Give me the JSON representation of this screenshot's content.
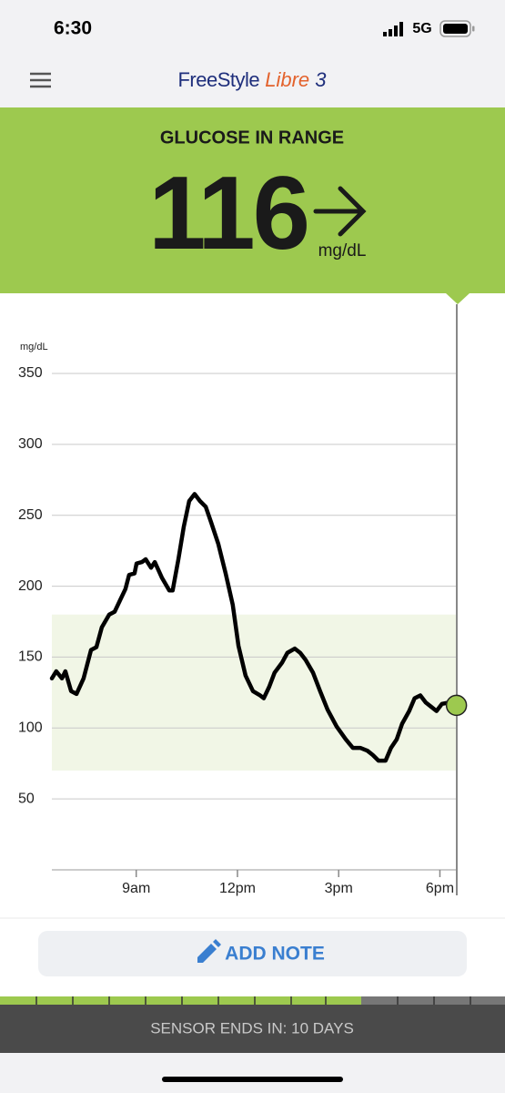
{
  "status_bar": {
    "time": "6:30",
    "network": "5G"
  },
  "header": {
    "brand": "FreeStyle",
    "product": "Libre",
    "version": "3"
  },
  "reading": {
    "status": "GLUCOSE IN RANGE",
    "value": 116,
    "unit": "mg/dL"
  },
  "chart_data": {
    "type": "line",
    "ylabel": "mg/dL",
    "x": [
      6.5,
      6.63,
      6.8,
      6.9,
      7.07,
      7.23,
      7.44,
      7.66,
      7.82,
      7.98,
      8.2,
      8.36,
      8.52,
      8.68,
      8.79,
      8.95,
      9.01,
      9.17,
      9.28,
      9.44,
      9.55,
      9.76,
      9.98,
      10.08,
      10.25,
      10.41,
      10.57,
      10.73,
      10.89,
      11.06,
      11.22,
      11.43,
      11.65,
      11.86,
      12.03,
      12.24,
      12.46,
      12.67,
      12.78,
      12.94,
      13.1,
      13.32,
      13.48,
      13.7,
      13.86,
      14.02,
      14.24,
      14.45,
      14.67,
      14.94,
      15.21,
      15.42,
      15.64,
      15.85,
      16.01,
      16.18,
      16.39,
      16.55,
      16.72,
      16.88,
      17.09,
      17.25,
      17.42,
      17.58,
      17.74,
      17.9,
      18.06,
      18.28,
      18.49
    ],
    "series": [
      {
        "color": "#000000",
        "values": [
          135,
          140,
          135,
          140,
          126,
          124,
          135,
          155,
          157,
          171,
          180,
          182,
          190,
          198,
          208,
          209,
          216,
          217,
          219,
          213,
          217,
          206,
          197,
          197,
          219,
          242,
          260,
          265,
          260,
          256,
          245,
          230,
          209,
          187,
          158,
          137,
          126,
          123,
          121,
          129,
          139,
          146,
          153,
          156,
          153,
          148,
          139,
          126,
          113,
          101,
          92,
          86,
          86,
          84,
          81,
          77,
          77,
          86,
          92,
          103,
          112,
          121,
          123,
          118,
          115,
          112,
          117,
          118,
          116
        ]
      }
    ],
    "current_color": "#9dc94f",
    "target_range": [
      70,
      180
    ],
    "target_color": "#f1f6e6",
    "xlim": [
      6.5,
      18.5
    ],
    "xticks": [
      {
        "value": 9,
        "label": "9am"
      },
      {
        "value": 12,
        "label": "12pm"
      },
      {
        "value": 15,
        "label": "3pm"
      },
      {
        "value": 18,
        "label": "6pm"
      }
    ],
    "ylim": [
      0,
      350
    ],
    "yticks": [
      50,
      100,
      150,
      200,
      250,
      300,
      350
    ],
    "grid": true
  },
  "actions": {
    "add_note": "ADD NOTE"
  },
  "sensor": {
    "label": "SENSOR ENDS IN: 10 DAYS"
  }
}
